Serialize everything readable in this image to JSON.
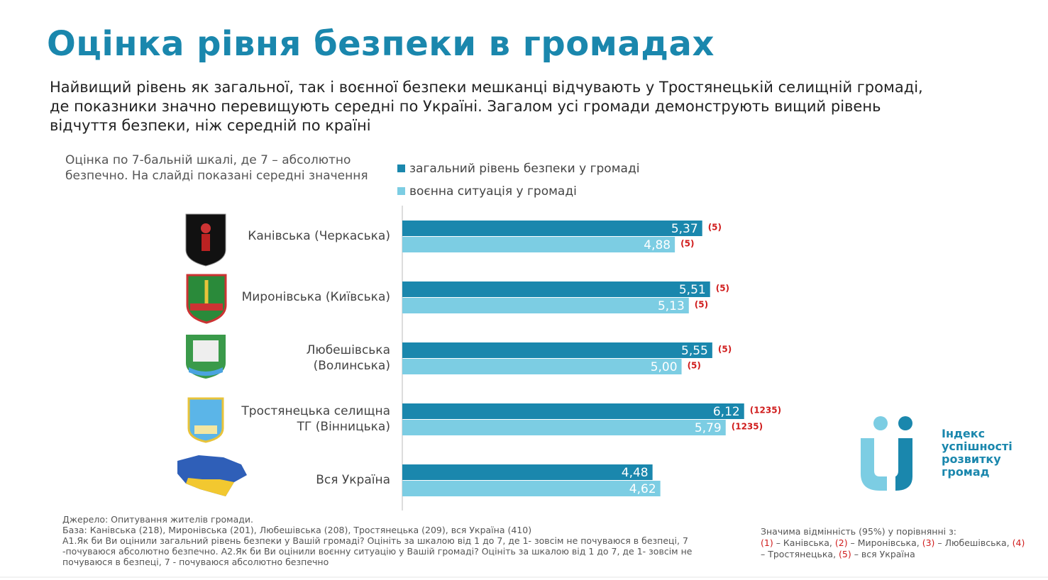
{
  "title": "Оцінка рівня безпеки в громадах",
  "subtitle": "Найвищий рівень як загальної, так і воєнної безпеки мешканці відчувають у Тростянецькій селищній громаді, де показники значно перевищують середні по Україні. Загалом усі громади демонструють вищий рівень відчуття безпеки, ніж середній по країні",
  "chart_data": {
    "type": "hbar",
    "note": "Оцінка по 7-бальній шкалі, де 7 – абсолютно безпечно. На слайді показані середні значення",
    "categories": [
      "Канівська (Черкаська)",
      "Миронівська (Київська)",
      "Любешівська\n(Волинська)",
      "Тростянецька селищна\nТГ (Вінницька)",
      "Вся Україна"
    ],
    "xlim": [
      0,
      7
    ],
    "series": [
      {
        "name": "загальний рівень безпеки у громаді",
        "color": "#1a87ad",
        "values": [
          5.37,
          5.51,
          5.55,
          6.12,
          4.48
        ],
        "value_labels": [
          "5,37",
          "5,51",
          "5,55",
          "6,12",
          "4,48"
        ],
        "significance": [
          "(5)",
          "(5)",
          "(5)",
          "(1235)",
          null
        ]
      },
      {
        "name": "воєнна ситуація у громаді",
        "color": "#7ccde3",
        "values": [
          4.88,
          5.13,
          5.0,
          5.79,
          4.62
        ],
        "value_labels": [
          "4,88",
          "5,13",
          "5,00",
          "5,79",
          "4,62"
        ],
        "significance": [
          "(5)",
          "(5)",
          "(5)",
          "(1235)",
          null
        ]
      }
    ]
  },
  "footer": {
    "lines": [
      "Джерело: Опитування жителів громади.",
      "База: Канівська (218), Миронівська (201), Любешівська (208), Тростянецька (209), вся Україна (410)",
      "А1.Як би Ви оцінили загальний рівень безпеки у Вашій громаді? Оцініть за шкалою від 1 до 7, де 1- зовсім не почуваюся в безпеці, 7 -почуваюся абсолютно безпечно. А2.Як би Ви оцінили воєнну ситуацію у Вашій громаді? Оцініть за шкалою від 1 до 7, де 1- зовсім не почуваюся в безпеці, 7 - почуваюся абсолютно безпечно"
    ]
  },
  "significance_note": {
    "title": "Значима відмінність (95%) у порівнянні з:",
    "items": [
      {
        "code": "(1)",
        "label": " – Канівська, "
      },
      {
        "code": "(2)",
        "label": " – Миронівська, "
      },
      {
        "code": "(3)",
        "label": " – Любешівська, "
      },
      {
        "code": "(4)",
        "label": " – Тростянецька, "
      },
      {
        "code": "(5)",
        "label": " – вся Україна"
      }
    ]
  },
  "logo": {
    "lines": [
      "Індекс",
      "успішності",
      "розвитку",
      "громад"
    ]
  }
}
